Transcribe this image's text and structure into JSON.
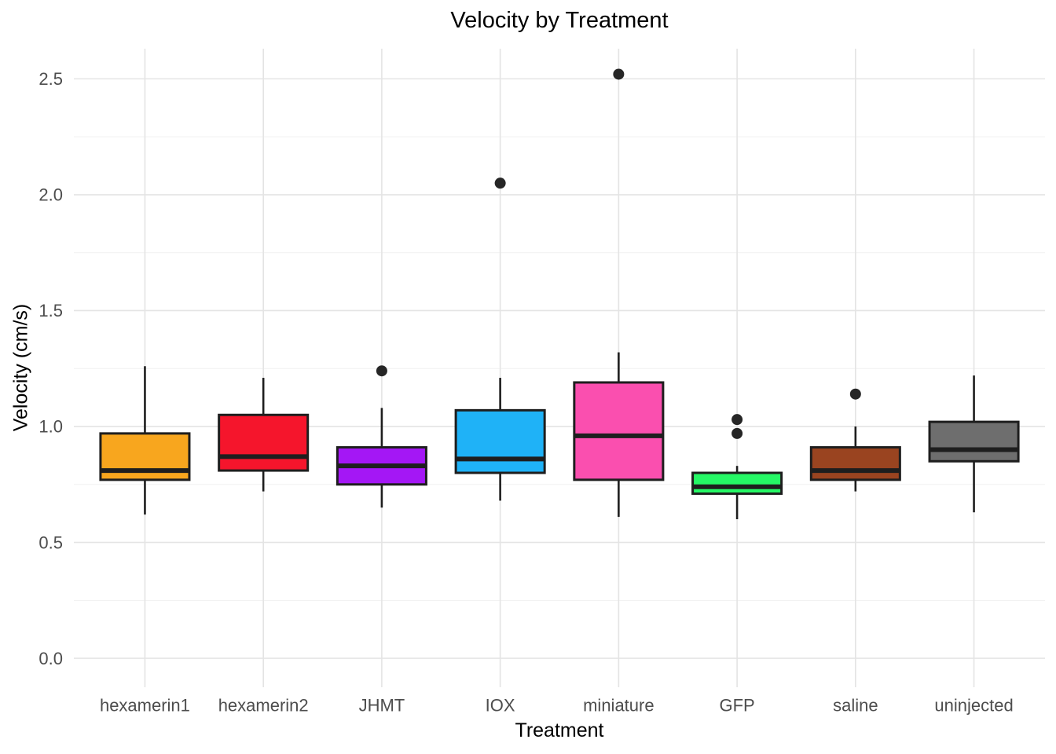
{
  "chart_data": {
    "type": "boxplot",
    "title": "Velocity by Treatment",
    "xlabel": "Treatment",
    "ylabel": "Velocity (cm/s)",
    "ylim": [
      -0.125,
      2.63
    ],
    "yticks": [
      0.0,
      0.5,
      1.0,
      1.5,
      2.0,
      2.5
    ],
    "ytick_labels": [
      "0.0",
      "0.5",
      "1.0",
      "1.5",
      "2.0",
      "2.5"
    ],
    "minor_yticks": [
      0.25,
      0.75,
      1.25,
      1.75,
      2.25
    ],
    "grid": true,
    "legend": "none",
    "categories": [
      "hexamerin1",
      "hexamerin2",
      "JHMT",
      "IOX",
      "miniature",
      "GFP",
      "saline",
      "uninjected"
    ],
    "series": [
      {
        "name": "hexamerin1",
        "fill": "#F8A61E",
        "whisker_low": 0.62,
        "q1": 0.77,
        "median": 0.81,
        "q3": 0.97,
        "whisker_high": 1.26,
        "outliers": []
      },
      {
        "name": "hexamerin2",
        "fill": "#F5152C",
        "whisker_low": 0.72,
        "q1": 0.81,
        "median": 0.87,
        "q3": 1.05,
        "whisker_high": 1.21,
        "outliers": []
      },
      {
        "name": "JHMT",
        "fill": "#A417F5",
        "whisker_low": 0.65,
        "q1": 0.75,
        "median": 0.83,
        "q3": 0.91,
        "whisker_high": 1.08,
        "outliers": [
          1.24
        ]
      },
      {
        "name": "IOX",
        "fill": "#1FB2F7",
        "whisker_low": 0.68,
        "q1": 0.8,
        "median": 0.86,
        "q3": 1.07,
        "whisker_high": 1.21,
        "outliers": [
          2.05
        ]
      },
      {
        "name": "miniature",
        "fill": "#FA4FAF",
        "whisker_low": 0.61,
        "q1": 0.77,
        "median": 0.96,
        "q3": 1.19,
        "whisker_high": 1.32,
        "outliers": [
          2.52
        ]
      },
      {
        "name": "GFP",
        "fill": "#25F765",
        "whisker_low": 0.6,
        "q1": 0.71,
        "median": 0.74,
        "q3": 0.8,
        "whisker_high": 0.83,
        "outliers": [
          0.97,
          1.03
        ]
      },
      {
        "name": "saline",
        "fill": "#9A4420",
        "whisker_low": 0.72,
        "q1": 0.77,
        "median": 0.81,
        "q3": 0.91,
        "whisker_high": 1.0,
        "outliers": [
          1.14
        ]
      },
      {
        "name": "uninjected",
        "fill": "#6E6E6E",
        "whisker_low": 0.63,
        "q1": 0.85,
        "median": 0.9,
        "q3": 1.02,
        "whisker_high": 1.22,
        "outliers": []
      }
    ],
    "colors": {
      "stroke": "#1E1E1E",
      "grid_major": "#E4E4E4",
      "grid_minor": "#F1F1F1",
      "tick_text": "#4D4D4D",
      "title_text": "#000000",
      "background": "#FFFFFF"
    }
  }
}
